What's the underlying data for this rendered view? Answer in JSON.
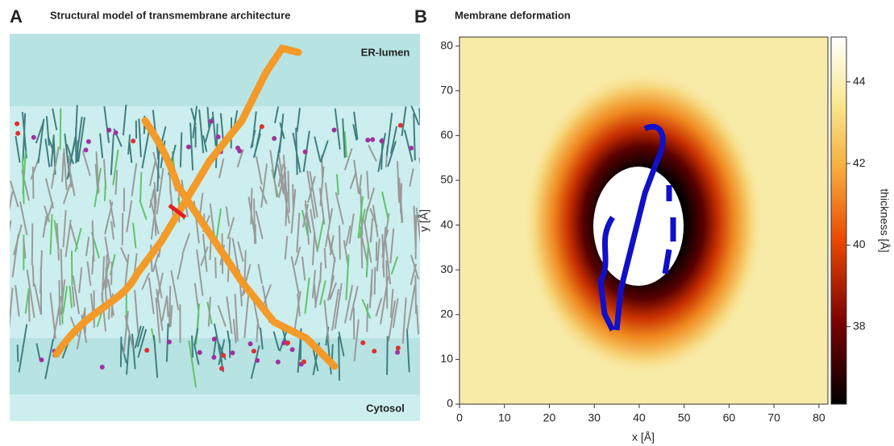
{
  "panel_a": {
    "letter": "A",
    "title": "Structural model of transmembrane architecture",
    "labels": [
      "ER-lumen",
      "Cytosol"
    ]
  },
  "chart_data": {
    "type": "heatmap",
    "letter": "B",
    "title": "Membrane deformation",
    "xlabel": "x [Å]",
    "ylabel": "y [Å]",
    "xlim": [
      0,
      82
    ],
    "xticks": [
      0,
      10,
      20,
      30,
      40,
      50,
      60,
      70,
      80
    ],
    "ylim": [
      0,
      82
    ],
    "yticks": [
      0,
      10,
      20,
      30,
      40,
      50,
      60,
      70,
      80
    ],
    "colorbar": {
      "label": "thickness [Å]",
      "lim": [
        36.1,
        45.1
      ],
      "ticks": [
        38,
        40,
        42,
        44
      ]
    }
  }
}
